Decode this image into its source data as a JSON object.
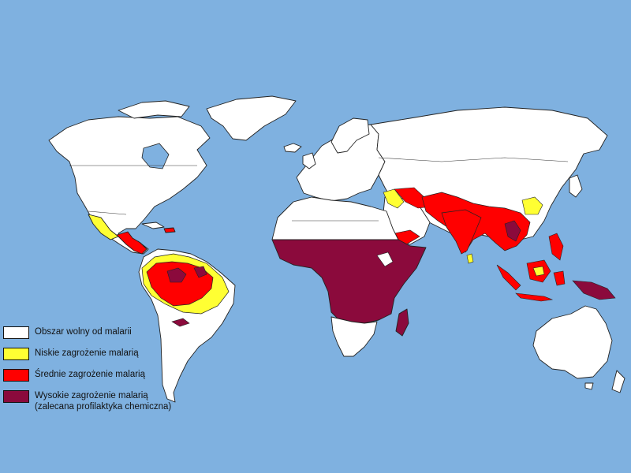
{
  "colors": {
    "ocean": "#7fb1e0",
    "free": "#ffffff",
    "low": "#ffff33",
    "medium": "#ff0000",
    "high": "#8b0a3c"
  },
  "legend": {
    "items": [
      {
        "label": "Obszar wolny od malarii",
        "sub": "",
        "color": "#ffffff"
      },
      {
        "label": "Niskie zagrożenie malarią",
        "sub": "",
        "color": "#ffff33"
      },
      {
        "label": "Średnie zagrożenie malarią",
        "sub": "",
        "color": "#ff0000"
      },
      {
        "label": "Wysokie zagrożenie malarią",
        "sub": "(zalecana profilaktyka chemiczna)",
        "color": "#8b0a3c"
      }
    ]
  }
}
